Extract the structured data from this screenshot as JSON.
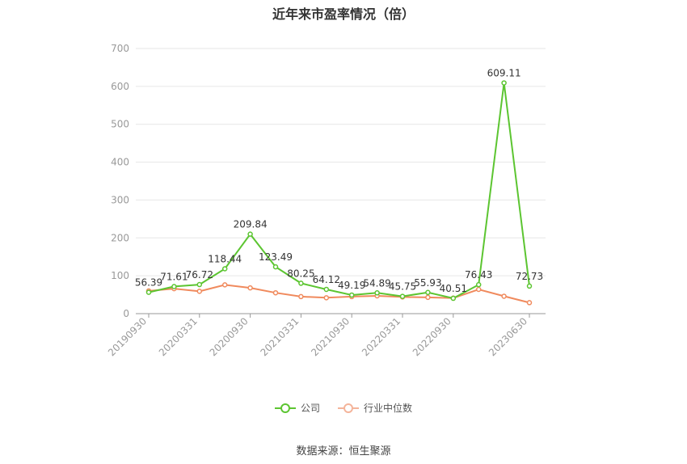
{
  "chart_data": {
    "type": "line",
    "title": "近年来市盈率情况（倍）",
    "source": "数据来源：恒生聚源",
    "ylim": [
      0,
      700
    ],
    "yticks": [
      0,
      100,
      200,
      300,
      400,
      500,
      600,
      700
    ],
    "xtick_labels": [
      "20190930",
      "20200331",
      "20200930",
      "20210331",
      "20210930",
      "20220331",
      "20220930",
      "20230630"
    ],
    "x": [
      "20190930",
      "20191231",
      "20200331",
      "20200630",
      "20200930",
      "20201231",
      "20210331",
      "20210630",
      "20210930",
      "20211231",
      "20220331",
      "20220630",
      "20220930",
      "20221231",
      "20230331",
      "20230630"
    ],
    "series": [
      {
        "name": "公司",
        "color": "#5cc531",
        "values": [
          56.39,
          71.61,
          76.72,
          118.44,
          209.84,
          123.49,
          80.25,
          64.12,
          49.19,
          54.89,
          45.75,
          55.93,
          40.51,
          76.43,
          609.11,
          72.73
        ],
        "labels": [
          "56.39",
          "71.61",
          "76.72",
          "118.44",
          "209.84",
          "123.49",
          "80.25",
          "64.12",
          "49.19",
          "54.89",
          "45.75",
          "55.93",
          "40.51",
          "76.43",
          "609.11",
          "72.73"
        ]
      },
      {
        "name": "行业中位数",
        "color": "#f08a5d",
        "values": [
          60,
          66,
          59,
          76,
          68,
          55,
          45,
          42,
          45,
          47,
          44,
          43,
          41,
          64,
          46,
          29
        ]
      }
    ],
    "grid": true,
    "legend_position": "bottom"
  }
}
